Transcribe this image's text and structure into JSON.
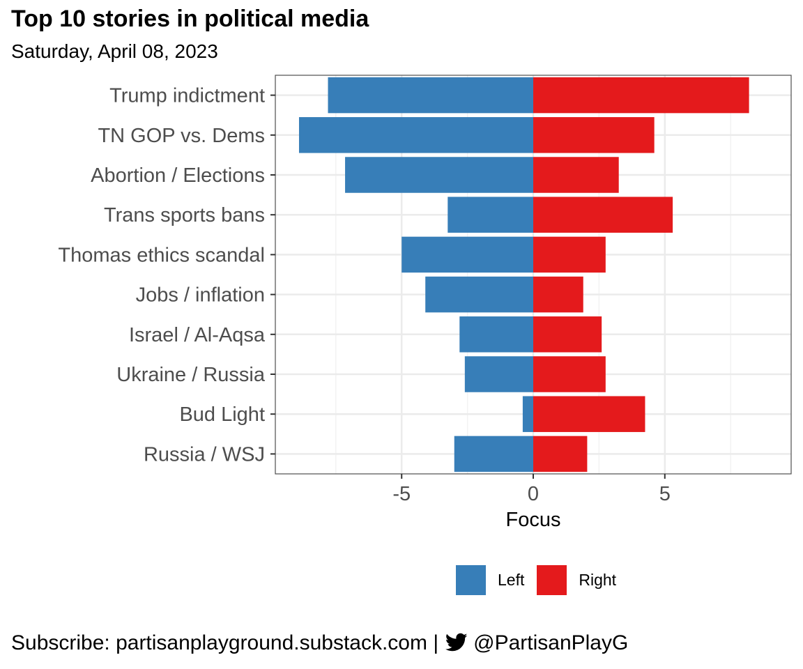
{
  "header": {
    "title": "Top 10 stories in political media",
    "subtitle": "Saturday, April 08, 2023"
  },
  "footer": {
    "prefix": "Subscribe: partisanplayground.substack.com |",
    "icon": "twitter-icon",
    "handle": "@PartisanPlayG"
  },
  "colors": {
    "left": "#377EB8",
    "right": "#E41A1C"
  },
  "chart_data": {
    "type": "bar",
    "orientation": "horizontal",
    "title": "Top 10 stories in political media",
    "subtitle": "Saturday, April 08, 2023",
    "xlabel": "Focus",
    "ylabel": "",
    "xlim": [
      -9.8,
      9.8
    ],
    "xticks": [
      -5,
      0,
      5
    ],
    "xtick_labels": [
      "-5",
      "0",
      "5"
    ],
    "grid": true,
    "legend_position": "bottom",
    "categories": [
      "Trump indictment",
      "TN GOP vs. Dems",
      "Abortion / Elections",
      "Trans sports bans",
      "Thomas ethics scandal",
      "Jobs / inflation",
      "Israel / Al-Aqsa",
      "Ukraine / Russia",
      "Bud Light",
      "Russia / WSJ"
    ],
    "series": [
      {
        "name": "Left",
        "color": "#377EB8",
        "values": [
          -7.8,
          -8.9,
          -7.15,
          -3.25,
          -5.0,
          -4.1,
          -2.8,
          -2.6,
          -0.4,
          -3.0
        ]
      },
      {
        "name": "Right",
        "color": "#E41A1C",
        "values": [
          8.2,
          4.6,
          3.25,
          5.3,
          2.75,
          1.9,
          2.6,
          2.75,
          4.25,
          2.05
        ]
      }
    ]
  }
}
